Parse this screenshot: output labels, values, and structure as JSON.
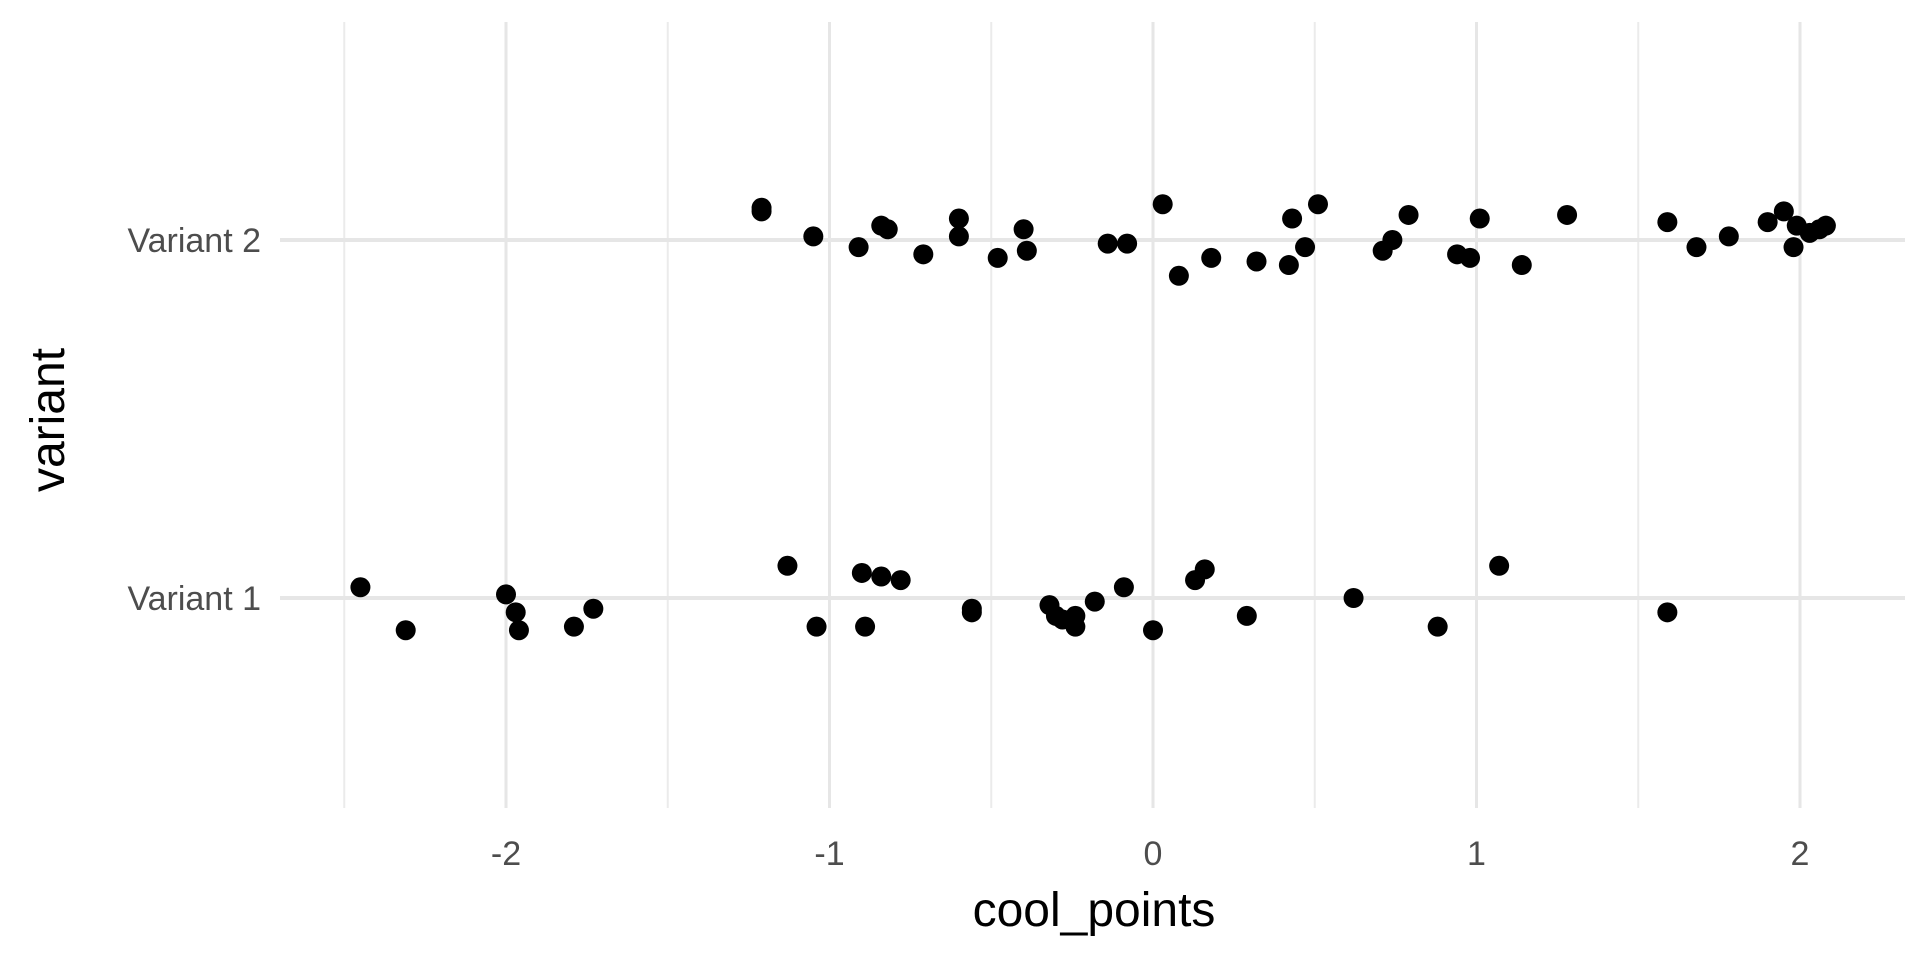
{
  "chart_data": {
    "type": "scatter",
    "title": "",
    "xlabel": "cool_points",
    "ylabel": "variant",
    "categories": [
      "Variant 1",
      "Variant 2"
    ],
    "xlim": [
      -2.6,
      2.3
    ],
    "xticks": [
      -2,
      -1,
      0,
      1,
      2
    ],
    "xtick_labels": [
      "-2",
      "-1",
      "0",
      "1",
      "2"
    ],
    "minor_xticks": [
      -2.5,
      -1.5,
      -0.5,
      0.5,
      1.5
    ],
    "grid": true,
    "legend": "none",
    "point_color": "#000000",
    "series": [
      {
        "category": "Variant 1",
        "points": [
          {
            "x": -2.45,
            "jitter": 0.03
          },
          {
            "x": -2.31,
            "jitter": -0.09
          },
          {
            "x": -2.0,
            "jitter": 0.01
          },
          {
            "x": -1.97,
            "jitter": -0.04
          },
          {
            "x": -1.96,
            "jitter": -0.09
          },
          {
            "x": -1.79,
            "jitter": -0.08
          },
          {
            "x": -1.73,
            "jitter": -0.03
          },
          {
            "x": -1.13,
            "jitter": 0.09
          },
          {
            "x": -1.04,
            "jitter": -0.08
          },
          {
            "x": -0.9,
            "jitter": 0.07
          },
          {
            "x": -0.89,
            "jitter": -0.08
          },
          {
            "x": -0.84,
            "jitter": 0.06
          },
          {
            "x": -0.78,
            "jitter": 0.05
          },
          {
            "x": -0.56,
            "jitter": -0.03
          },
          {
            "x": -0.56,
            "jitter": -0.04
          },
          {
            "x": -0.32,
            "jitter": -0.02
          },
          {
            "x": -0.3,
            "jitter": -0.05
          },
          {
            "x": -0.28,
            "jitter": -0.06
          },
          {
            "x": -0.24,
            "jitter": -0.08
          },
          {
            "x": -0.24,
            "jitter": -0.05
          },
          {
            "x": -0.18,
            "jitter": -0.01
          },
          {
            "x": -0.09,
            "jitter": 0.03
          },
          {
            "x": 0.0,
            "jitter": -0.09
          },
          {
            "x": 0.13,
            "jitter": 0.05
          },
          {
            "x": 0.16,
            "jitter": 0.08
          },
          {
            "x": 0.29,
            "jitter": -0.05
          },
          {
            "x": 0.62,
            "jitter": 0.0
          },
          {
            "x": 0.88,
            "jitter": -0.08
          },
          {
            "x": 1.07,
            "jitter": 0.09
          },
          {
            "x": 1.59,
            "jitter": -0.04
          }
        ]
      },
      {
        "category": "Variant 2",
        "points": [
          {
            "x": -1.21,
            "jitter": 0.08
          },
          {
            "x": -1.21,
            "jitter": 0.09
          },
          {
            "x": -1.05,
            "jitter": 0.01
          },
          {
            "x": -0.91,
            "jitter": -0.02
          },
          {
            "x": -0.84,
            "jitter": 0.04
          },
          {
            "x": -0.82,
            "jitter": 0.03
          },
          {
            "x": -0.71,
            "jitter": -0.04
          },
          {
            "x": -0.6,
            "jitter": 0.06
          },
          {
            "x": -0.6,
            "jitter": 0.01
          },
          {
            "x": -0.48,
            "jitter": -0.05
          },
          {
            "x": -0.4,
            "jitter": 0.03
          },
          {
            "x": -0.39,
            "jitter": -0.03
          },
          {
            "x": -0.14,
            "jitter": -0.01
          },
          {
            "x": -0.08,
            "jitter": -0.01
          },
          {
            "x": 0.03,
            "jitter": 0.1
          },
          {
            "x": 0.08,
            "jitter": -0.1
          },
          {
            "x": 0.18,
            "jitter": -0.05
          },
          {
            "x": 0.32,
            "jitter": -0.06
          },
          {
            "x": 0.42,
            "jitter": -0.07
          },
          {
            "x": 0.43,
            "jitter": 0.06
          },
          {
            "x": 0.47,
            "jitter": -0.02
          },
          {
            "x": 0.51,
            "jitter": 0.1
          },
          {
            "x": 0.71,
            "jitter": -0.03
          },
          {
            "x": 0.74,
            "jitter": 0.0
          },
          {
            "x": 0.79,
            "jitter": 0.07
          },
          {
            "x": 0.94,
            "jitter": -0.04
          },
          {
            "x": 0.98,
            "jitter": -0.05
          },
          {
            "x": 1.01,
            "jitter": 0.06
          },
          {
            "x": 1.14,
            "jitter": -0.07
          },
          {
            "x": 1.28,
            "jitter": 0.07
          },
          {
            "x": 1.59,
            "jitter": 0.05
          },
          {
            "x": 1.68,
            "jitter": -0.02
          },
          {
            "x": 1.78,
            "jitter": 0.01
          },
          {
            "x": 1.9,
            "jitter": 0.05
          },
          {
            "x": 1.95,
            "jitter": 0.08
          },
          {
            "x": 1.98,
            "jitter": -0.02
          },
          {
            "x": 1.99,
            "jitter": 0.04
          },
          {
            "x": 2.03,
            "jitter": 0.02
          },
          {
            "x": 2.06,
            "jitter": 0.03
          },
          {
            "x": 2.08,
            "jitter": 0.04
          }
        ]
      }
    ]
  }
}
